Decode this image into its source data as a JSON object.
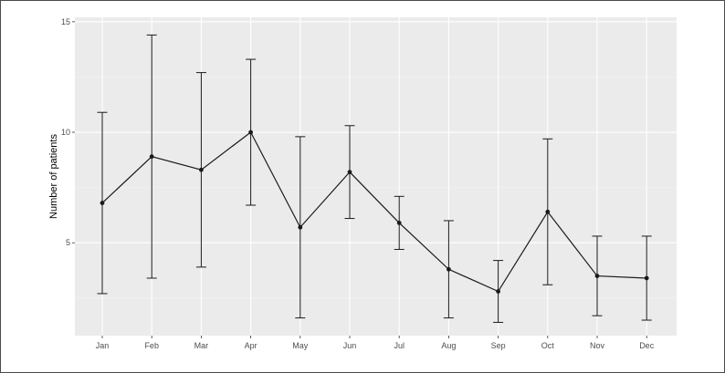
{
  "chart_data": {
    "type": "line",
    "title": "",
    "xlabel": "",
    "ylabel": "Number of patients",
    "categories": [
      "Jan",
      "Feb",
      "Mar",
      "Apr",
      "May",
      "Jun",
      "Jul",
      "Aug",
      "Sep",
      "Oct",
      "Nov",
      "Dec"
    ],
    "series": [
      {
        "values": [
          6.8,
          8.9,
          8.3,
          10.0,
          5.7,
          8.2,
          5.9,
          3.8,
          2.8,
          6.4,
          3.5,
          3.4
        ],
        "error_low": [
          2.7,
          3.4,
          3.9,
          6.7,
          1.6,
          6.1,
          4.7,
          1.6,
          1.4,
          3.1,
          1.7,
          1.5
        ],
        "error_high": [
          10.9,
          14.4,
          12.7,
          13.3,
          9.8,
          10.3,
          7.1,
          6.0,
          4.2,
          9.7,
          5.3,
          5.3
        ]
      }
    ],
    "y_ticks": [
      5,
      10,
      15
    ],
    "y_tick_labels": [
      "5",
      "10",
      "15"
    ],
    "ylim": [
      0.8,
      15.2
    ],
    "grid": true,
    "legend": "none",
    "colors": {
      "panel_background": "#ebebeb",
      "grid_major": "#ffffff",
      "grid_minor": "#f4f4f4",
      "series": "#1a1a1a",
      "tick": "#333333"
    }
  }
}
